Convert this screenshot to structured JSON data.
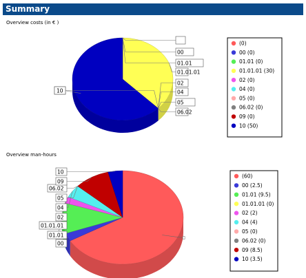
{
  "header": {
    "title": "Summary"
  },
  "chart_data": [
    {
      "type": "pie",
      "title": "Overview costs (in € )",
      "legend_position": "right",
      "categories": [
        "",
        "00",
        "01.01",
        "01.01.01",
        "02",
        "04",
        "05",
        "06.02",
        "09",
        "10"
      ],
      "values": [
        0,
        0,
        0,
        30,
        0,
        0,
        0,
        0,
        0,
        50
      ],
      "legend_labels": [
        "(0)",
        "00 (0)",
        "01.01  (0)",
        "01.01.01  (30)",
        "02  (0)",
        "04  (0)",
        "05  (0)",
        "06.02  (0)",
        "09  (0)",
        "10  (50)"
      ],
      "colors": [
        "#ff5a5a",
        "#3a3ad8",
        "#55ee55",
        "#ffff55",
        "#ee55ee",
        "#55eeee",
        "#ffaaaa",
        "#808080",
        "#c00000",
        "#0000c0"
      ]
    },
    {
      "type": "pie",
      "title": "Overview man-hours",
      "legend_position": "right",
      "categories": [
        "",
        "00",
        "01.01",
        "01.01.01",
        "02",
        "04",
        "05",
        "06.02",
        "09",
        "10"
      ],
      "values": [
        60,
        2.5,
        9.5,
        0,
        2,
        4,
        0,
        0,
        8.5,
        3.5
      ],
      "legend_labels": [
        "(60)",
        "00 (2.5)",
        "01.01 (9.5)",
        "01.01.01 (0)",
        "02 (2)",
        "04 (4)",
        "05 (0)",
        "06.02 (0)",
        "09 (8.5)",
        "10 (3.5)"
      ],
      "colors": [
        "#ff5a5a",
        "#3a3ad8",
        "#55ee55",
        "#ffff55",
        "#ee55ee",
        "#55eeee",
        "#ffaaaa",
        "#808080",
        "#c00000",
        "#0000c0"
      ]
    }
  ]
}
